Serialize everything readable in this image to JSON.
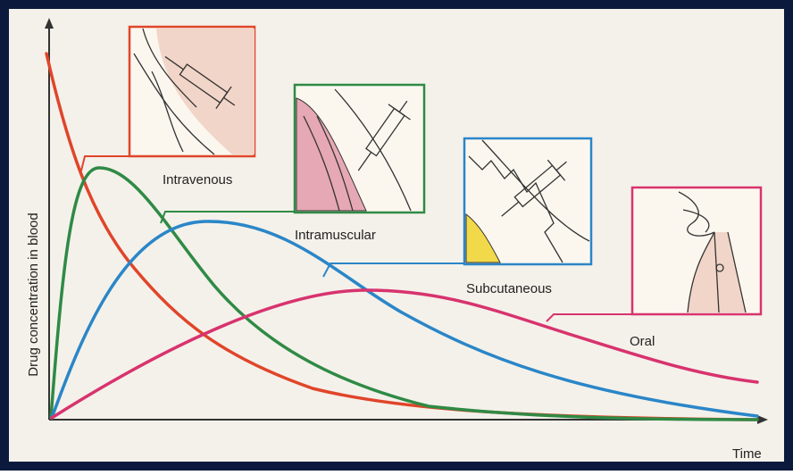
{
  "axes": {
    "y_label": "Drug concentration in blood",
    "x_label": "Time"
  },
  "routes": [
    {
      "label": "Intravenous"
    },
    {
      "label": "Intramuscular"
    },
    {
      "label": "Subcutaneous"
    },
    {
      "label": "Oral"
    }
  ]
}
